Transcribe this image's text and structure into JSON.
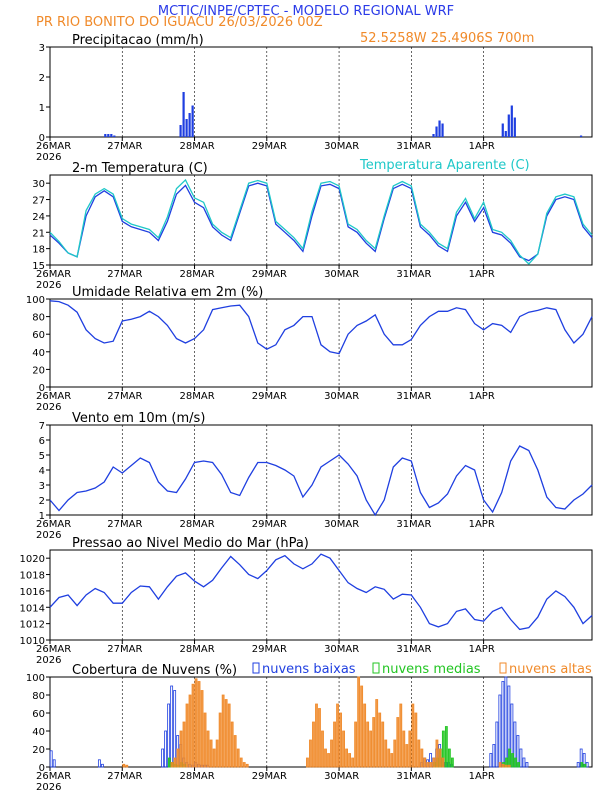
{
  "header": {
    "line1": "MCTIC/INPE/CPTEC - MODELO REGIONAL WRF",
    "line2": "PR RIO BONITO DO IGUACU   26/03/2026 00Z",
    "coords": "52.5258W 25.4906S 700m"
  },
  "colors": {
    "blue": "#1f3fe0",
    "cyan": "#1fc8c8",
    "green": "#22c522",
    "orange": "#f08a2a",
    "title_blue": "#2a3ae8",
    "black": "#000000"
  },
  "time_axis": {
    "labels": [
      "26MAR",
      "27MAR",
      "28MAR",
      "29MAR",
      "30MAR",
      "31MAR",
      "1APR"
    ],
    "year": "2026"
  },
  "chart_data": [
    {
      "type": "bar",
      "title": "Precipitacao (mm/h)",
      "ylim": [
        0,
        3
      ],
      "yticks": [
        "0",
        "1",
        "2",
        "3"
      ],
      "x_hours": [
        18,
        19,
        20,
        21,
        43,
        44,
        45,
        46,
        47,
        127,
        128,
        129,
        130,
        150,
        151,
        152,
        153,
        154,
        176
      ],
      "values": [
        0.1,
        0.1,
        0.1,
        0.05,
        0.4,
        1.5,
        0.6,
        0.8,
        1.05,
        0.1,
        0.35,
        0.55,
        0.45,
        0.45,
        0.2,
        0.75,
        1.05,
        0.65,
        0.05
      ]
    },
    {
      "type": "line",
      "title": "2-m Temperatura (C)",
      "legend": "Temperatura Aparente (C)",
      "ylim": [
        15,
        31.5
      ],
      "yticks": [
        "15",
        "18",
        "21",
        "24",
        "27",
        "30"
      ],
      "series": [
        {
          "name": "Temperatura",
          "color": "blue",
          "x": [
            0,
            3,
            6,
            9,
            12,
            15,
            18,
            21,
            24,
            27,
            30,
            33,
            36,
            39,
            42,
            45,
            48,
            51,
            54,
            57,
            60,
            63,
            66,
            69,
            72,
            75,
            78,
            81,
            84,
            87,
            90,
            93,
            96,
            99,
            102,
            105,
            108,
            111,
            114,
            117,
            120,
            123,
            126,
            129,
            132,
            135,
            138,
            141,
            144,
            147,
            150,
            153,
            156,
            159,
            162,
            165,
            168,
            171,
            174,
            177,
            180
          ],
          "y": [
            20.5,
            19,
            17.2,
            16.5,
            24,
            27.5,
            28.6,
            27.5,
            23,
            22,
            21.5,
            21,
            19.5,
            23,
            28,
            29.6,
            26.5,
            25.5,
            22,
            20.5,
            19.5,
            24.5,
            29.5,
            30,
            29.5,
            22.5,
            21,
            19.5,
            17.5,
            24,
            29.5,
            29.8,
            29,
            22,
            21,
            19,
            17.5,
            23.5,
            29,
            29.8,
            29,
            22,
            20.5,
            18.5,
            17.5,
            24,
            26.5,
            23,
            25.5,
            21,
            20.5,
            19,
            16.5,
            15.8,
            17,
            24,
            27,
            27.5,
            27,
            22,
            20
          ]
        },
        {
          "name": "Temperatura Aparente",
          "color": "cyan",
          "x": [
            0,
            3,
            6,
            9,
            12,
            15,
            18,
            21,
            24,
            27,
            30,
            33,
            36,
            39,
            42,
            45,
            48,
            51,
            54,
            57,
            60,
            63,
            66,
            69,
            72,
            75,
            78,
            81,
            84,
            87,
            90,
            93,
            96,
            99,
            102,
            105,
            108,
            111,
            114,
            117,
            120,
            123,
            126,
            129,
            132,
            135,
            138,
            141,
            144,
            147,
            150,
            153,
            156,
            159,
            162,
            165,
            168,
            171,
            174,
            177,
            180
          ],
          "y": [
            21,
            19.3,
            17.2,
            16.5,
            25,
            28,
            29,
            28,
            23.5,
            22.5,
            22,
            21.5,
            20,
            23.8,
            29,
            30.6,
            27.3,
            26.5,
            22.5,
            21,
            20,
            25,
            30,
            30.5,
            30,
            23,
            21.5,
            20,
            18,
            24.8,
            30,
            30.3,
            29.5,
            22.5,
            21.5,
            19.5,
            18,
            24,
            29.5,
            30.3,
            29.5,
            22.5,
            21,
            19,
            18,
            24.7,
            27.2,
            23.5,
            26.5,
            21.5,
            21,
            19.5,
            16.8,
            15.2,
            17,
            24.5,
            27.5,
            28,
            27.5,
            22.5,
            20.5
          ]
        }
      ]
    },
    {
      "type": "line",
      "title": "Umidade Relativa em 2m (%)",
      "ylim": [
        0,
        100
      ],
      "yticks": [
        "0",
        "20",
        "40",
        "60",
        "80",
        "100"
      ],
      "series": [
        {
          "name": "Umidade Relativa",
          "color": "blue",
          "x": [
            0,
            3,
            6,
            9,
            12,
            15,
            18,
            21,
            24,
            27,
            30,
            33,
            36,
            39,
            42,
            45,
            48,
            51,
            54,
            57,
            60,
            63,
            66,
            69,
            72,
            75,
            78,
            81,
            84,
            87,
            90,
            93,
            96,
            99,
            102,
            105,
            108,
            111,
            114,
            117,
            120,
            123,
            126,
            129,
            132,
            135,
            138,
            141,
            144,
            147,
            150,
            153,
            156,
            159,
            162,
            165,
            168,
            171,
            174,
            177,
            180
          ],
          "y": [
            98,
            97,
            93,
            85,
            65,
            55,
            50,
            52,
            75,
            77,
            80,
            86,
            80,
            70,
            55,
            50,
            55,
            65,
            88,
            90,
            92,
            93,
            80,
            50,
            43,
            48,
            65,
            70,
            80,
            80,
            48,
            40,
            38,
            60,
            70,
            75,
            82,
            60,
            48,
            48,
            54,
            70,
            80,
            86,
            86,
            90,
            88,
            72,
            65,
            72,
            70,
            62,
            80,
            85,
            87,
            90,
            88,
            65,
            50,
            60,
            80
          ]
        }
      ]
    },
    {
      "type": "line",
      "title": "Vento em 10m (m/s)",
      "ylim": [
        1,
        7
      ],
      "yticks": [
        "1",
        "2",
        "3",
        "4",
        "5",
        "6",
        "7"
      ],
      "series": [
        {
          "name": "Vento",
          "color": "blue",
          "x": [
            0,
            3,
            6,
            9,
            12,
            15,
            18,
            21,
            24,
            27,
            30,
            33,
            36,
            39,
            42,
            45,
            48,
            51,
            54,
            57,
            60,
            63,
            66,
            69,
            72,
            75,
            78,
            81,
            84,
            87,
            90,
            93,
            96,
            99,
            102,
            105,
            108,
            111,
            114,
            117,
            120,
            123,
            126,
            129,
            132,
            135,
            138,
            141,
            144,
            147,
            150,
            153,
            156,
            159,
            162,
            165,
            168,
            171,
            174,
            177,
            180
          ],
          "y": [
            2,
            1.3,
            2,
            2.5,
            2.6,
            2.8,
            3.2,
            4.2,
            3.8,
            4.3,
            4.8,
            4.5,
            3.2,
            2.6,
            2.5,
            3.4,
            4.5,
            4.6,
            4.5,
            3.7,
            2.5,
            2.3,
            3.5,
            4.5,
            4.5,
            4.3,
            4.0,
            3.6,
            2.2,
            3.0,
            4.2,
            4.6,
            5.0,
            4.4,
            3.6,
            2.0,
            1.0,
            2.0,
            4.2,
            4.8,
            4.6,
            2.5,
            1.5,
            1.8,
            2.4,
            3.6,
            4.3,
            4.0,
            2.0,
            1.2,
            2.5,
            4.6,
            5.6,
            5.3,
            4.0,
            2.2,
            1.5,
            1.4,
            2.0,
            2.4,
            3.0
          ]
        }
      ]
    },
    {
      "type": "line",
      "title": "Pressao ao Nivel Medio do Mar (hPa)",
      "ylim": [
        1010,
        1021
      ],
      "yticks": [
        "1010",
        "1012",
        "1014",
        "1016",
        "1018",
        "1020"
      ],
      "series": [
        {
          "name": "Pressao",
          "color": "blue",
          "x": [
            0,
            3,
            6,
            9,
            12,
            15,
            18,
            21,
            24,
            27,
            30,
            33,
            36,
            39,
            42,
            45,
            48,
            51,
            54,
            57,
            60,
            63,
            66,
            69,
            72,
            75,
            78,
            81,
            84,
            87,
            90,
            93,
            96,
            99,
            102,
            105,
            108,
            111,
            114,
            117,
            120,
            123,
            126,
            129,
            132,
            135,
            138,
            141,
            144,
            147,
            150,
            153,
            156,
            159,
            162,
            165,
            168,
            171,
            174,
            177,
            180
          ],
          "y": [
            1014,
            1015.2,
            1015.5,
            1014.2,
            1015.5,
            1016.3,
            1015.8,
            1014.5,
            1014.5,
            1015.8,
            1016.6,
            1016.5,
            1015,
            1016.5,
            1017.8,
            1018.2,
            1017.2,
            1016.5,
            1017.3,
            1018.8,
            1020.2,
            1019.2,
            1018,
            1017.5,
            1018.5,
            1019.8,
            1020.3,
            1019.3,
            1018.7,
            1019.3,
            1020.5,
            1020,
            1018.5,
            1017,
            1016.3,
            1015.8,
            1016.5,
            1016.2,
            1015,
            1015.6,
            1015.5,
            1014,
            1012,
            1011.6,
            1012,
            1013.5,
            1013.8,
            1012.5,
            1012.3,
            1013.5,
            1014,
            1012.5,
            1011.3,
            1011.5,
            1012.8,
            1015,
            1016,
            1015.3,
            1014,
            1012,
            1013
          ]
        }
      ]
    },
    {
      "type": "bar",
      "title": "Cobertura de Nuvens (%)",
      "legend": [
        "nuvens baixas",
        "nuvens medias",
        "nuvens altas"
      ],
      "ylim": [
        0,
        100
      ],
      "yticks": [
        "0",
        "20",
        "40",
        "60",
        "80",
        "100"
      ],
      "series": [
        {
          "name": "nuvens baixas",
          "color": "blue",
          "x": [
            0,
            1,
            16,
            17,
            37,
            38,
            39,
            40,
            41,
            42,
            43,
            44,
            45,
            46,
            47,
            48,
            49,
            50,
            51,
            52,
            123,
            124,
            125,
            126,
            127,
            128,
            129,
            130,
            131,
            132,
            133,
            146,
            147,
            148,
            149,
            150,
            151,
            152,
            153,
            154,
            155,
            156,
            157,
            158,
            175,
            176,
            177,
            178
          ],
          "values": [
            18,
            8,
            8,
            3,
            20,
            40,
            70,
            90,
            85,
            35,
            25,
            10,
            5,
            3,
            2,
            5,
            3,
            2,
            2,
            2,
            5,
            10,
            8,
            15,
            10,
            20,
            25,
            10,
            5,
            5,
            3,
            15,
            25,
            50,
            80,
            95,
            100,
            90,
            70,
            50,
            35,
            20,
            10,
            5,
            5,
            20,
            15,
            5
          ]
        },
        {
          "name": "nuvens medias",
          "color": "green",
          "x": [
            39,
            40,
            41,
            42,
            43,
            44,
            127,
            128,
            129,
            130,
            131,
            132,
            133,
            150,
            151,
            152,
            153,
            154,
            155,
            176,
            177
          ],
          "values": [
            10,
            5,
            3,
            2,
            5,
            3,
            5,
            10,
            20,
            40,
            45,
            20,
            10,
            5,
            10,
            20,
            15,
            10,
            5,
            5,
            3
          ]
        },
        {
          "name": "nuvens altas",
          "color": "orange",
          "x": [
            24,
            25,
            40,
            41,
            42,
            43,
            44,
            45,
            46,
            47,
            48,
            49,
            50,
            51,
            52,
            53,
            54,
            55,
            56,
            57,
            58,
            59,
            60,
            61,
            62,
            63,
            64,
            65,
            85,
            86,
            87,
            88,
            89,
            90,
            91,
            92,
            93,
            94,
            95,
            96,
            97,
            98,
            99,
            100,
            101,
            102,
            103,
            104,
            105,
            106,
            107,
            108,
            109,
            110,
            111,
            112,
            113,
            114,
            115,
            116,
            117,
            118,
            119,
            120,
            121,
            122,
            123,
            124,
            125,
            126,
            127,
            128,
            129,
            130,
            149,
            150,
            151,
            152
          ],
          "values": [
            3,
            2,
            5,
            10,
            20,
            40,
            50,
            70,
            80,
            92,
            98,
            95,
            85,
            60,
            40,
            30,
            20,
            30,
            60,
            80,
            75,
            70,
            50,
            35,
            20,
            10,
            5,
            3,
            10,
            30,
            50,
            70,
            65,
            40,
            20,
            15,
            30,
            50,
            70,
            60,
            40,
            20,
            15,
            10,
            50,
            100,
            90,
            70,
            50,
            40,
            55,
            75,
            60,
            50,
            30,
            20,
            15,
            30,
            55,
            70,
            40,
            25,
            40,
            70,
            60,
            30,
            20,
            10,
            5,
            5,
            10,
            30,
            20,
            10,
            5,
            3,
            2,
            2
          ]
        }
      ]
    }
  ]
}
